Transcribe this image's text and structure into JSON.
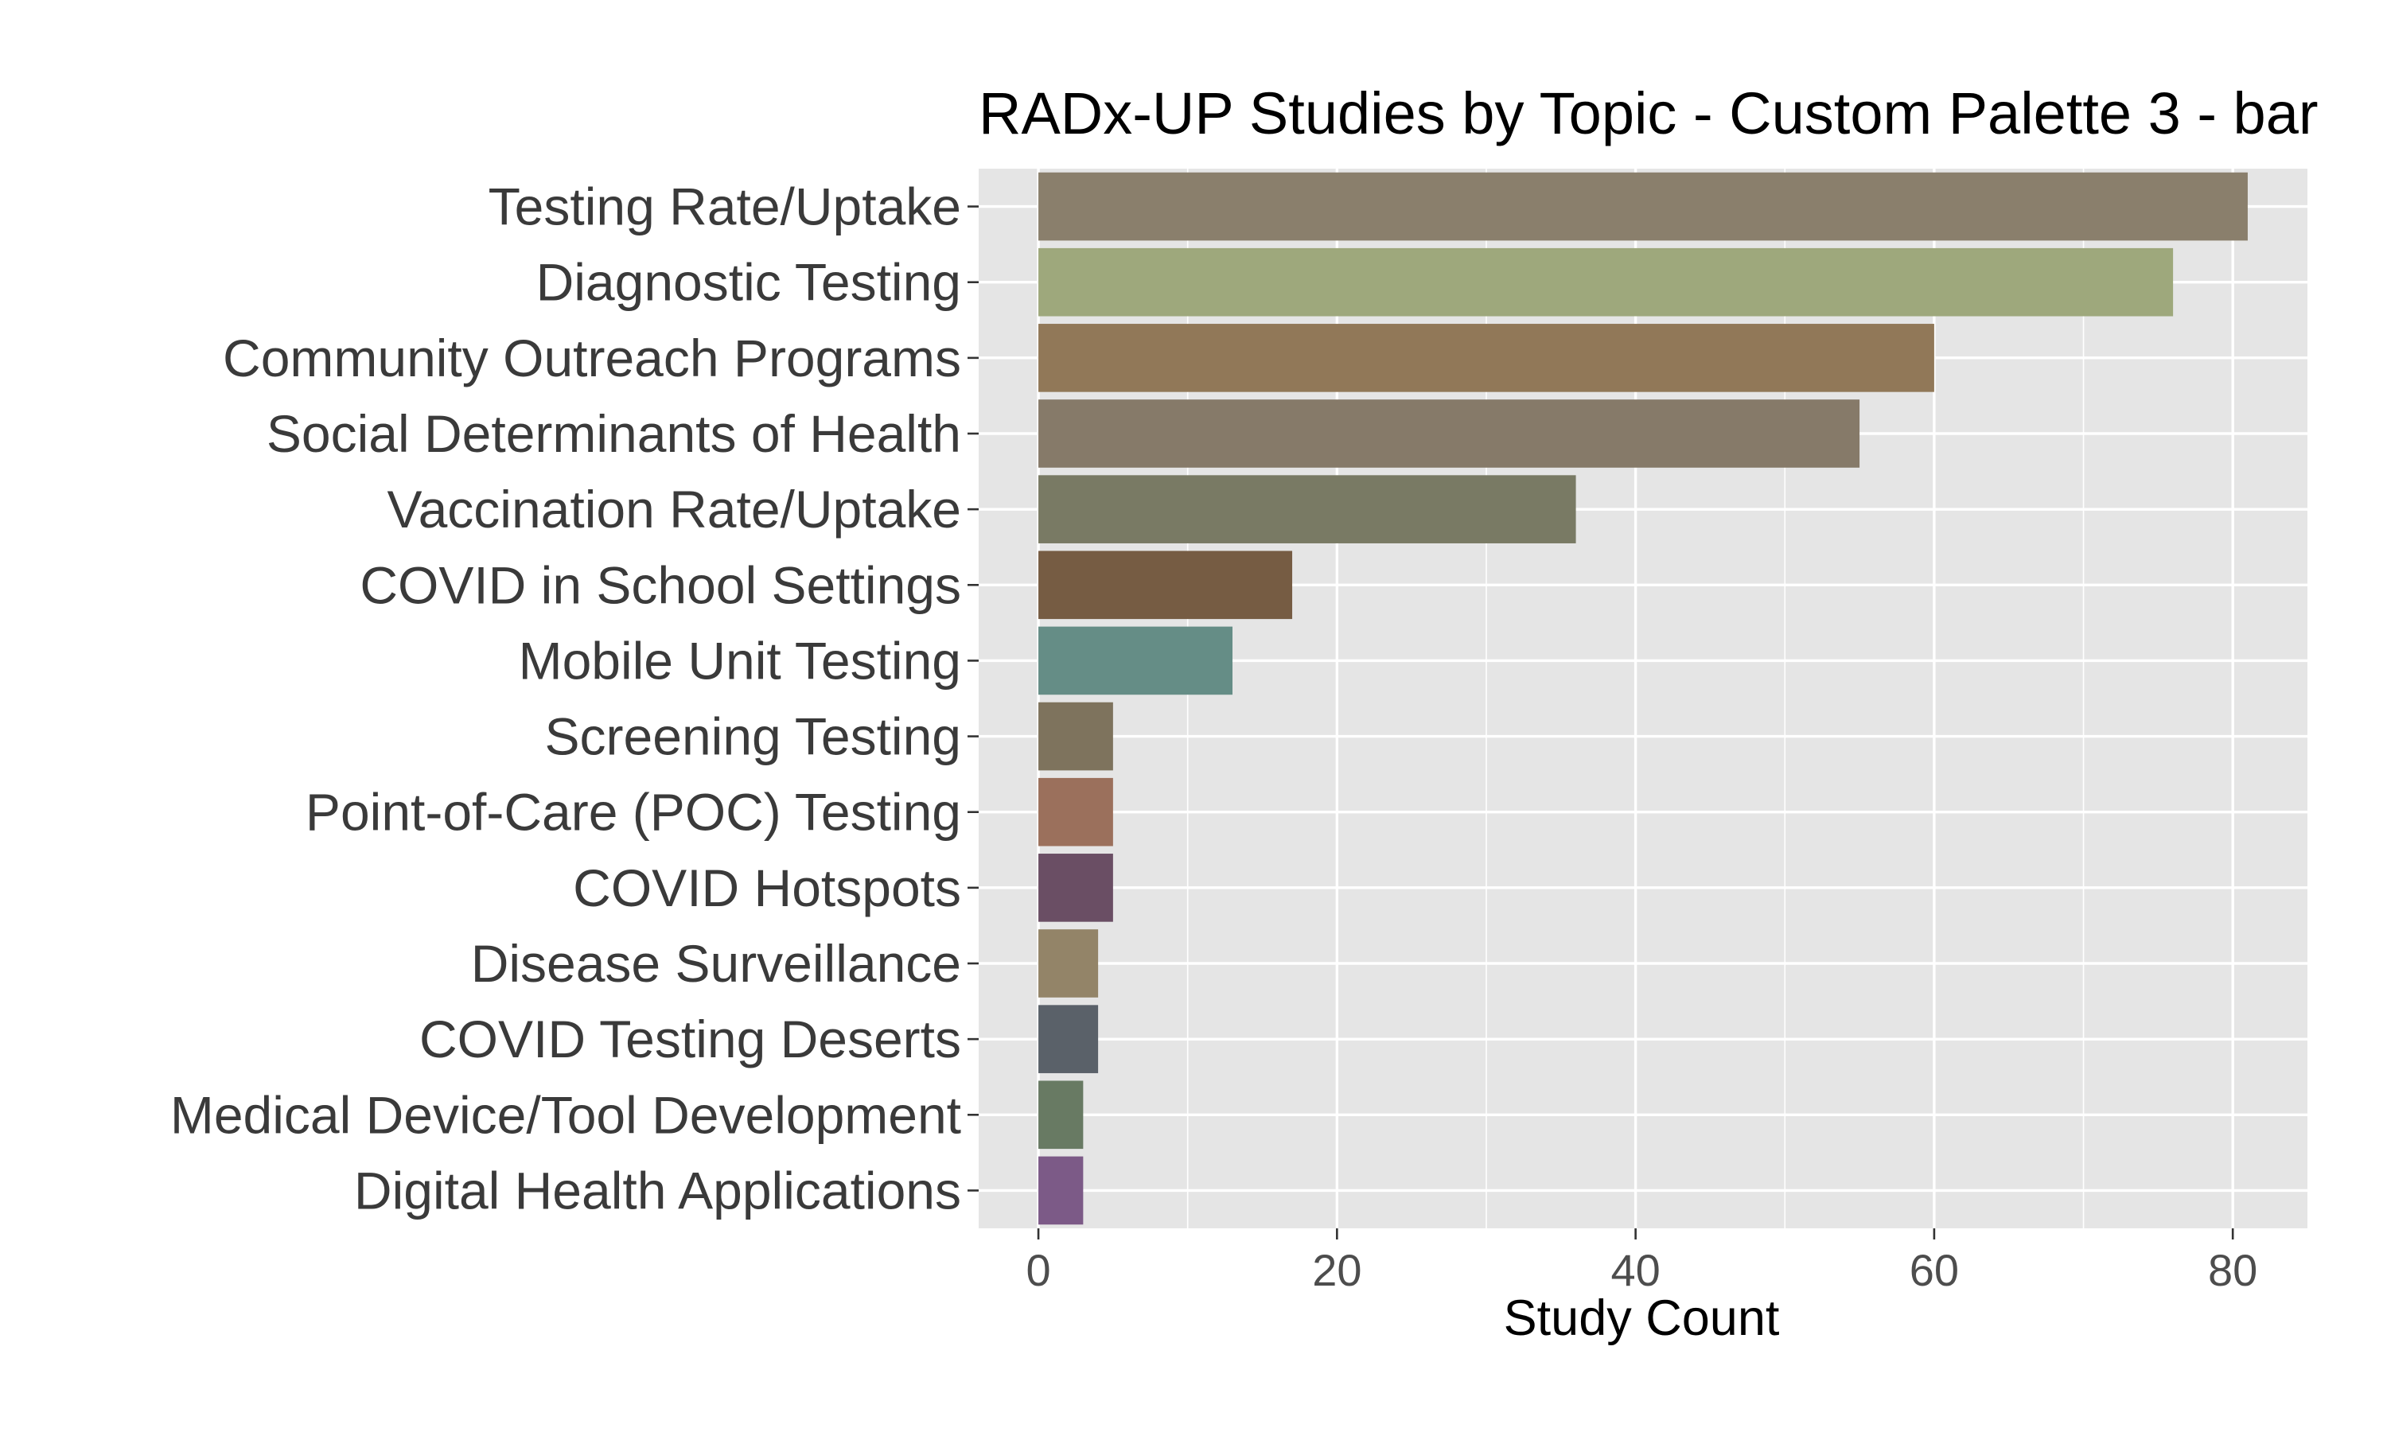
{
  "chart_data": {
    "type": "bar",
    "orientation": "horizontal",
    "title": "RADx-UP Studies by Topic - Custom Palette 3 - bar",
    "xlabel": "Study Count",
    "ylabel": "",
    "xlim": [
      -4,
      85
    ],
    "x_ticks": [
      0,
      20,
      40,
      60,
      80
    ],
    "x_tick_labels": [
      "0",
      "20",
      "40",
      "60",
      "80"
    ],
    "grid": true,
    "panel_background": "#e5e5e5",
    "grid_color": "#ffffff",
    "categories": [
      "Testing Rate/Uptake",
      "Diagnostic Testing",
      "Community Outreach Programs",
      "Social Determinants of Health",
      "Vaccination Rate/Uptake",
      "COVID in School Settings",
      "Mobile Unit Testing",
      "Screening Testing",
      "Point-of-Care (POC) Testing",
      "COVID Hotspots",
      "Disease Surveillance",
      "COVID Testing Deserts",
      "Medical Device/Tool Development",
      "Digital Health Applications"
    ],
    "values": [
      81,
      76,
      60,
      55,
      36,
      17,
      13,
      5,
      5,
      5,
      4,
      4,
      3,
      3
    ],
    "colors": [
      "#8a7f6c",
      "#9ea87c",
      "#917858",
      "#867a69",
      "#797a64",
      "#765c43",
      "#658d86",
      "#7e735d",
      "#9b705c",
      "#6a4e64",
      "#938468",
      "#5a6169",
      "#687a63",
      "#7c5a87"
    ]
  }
}
